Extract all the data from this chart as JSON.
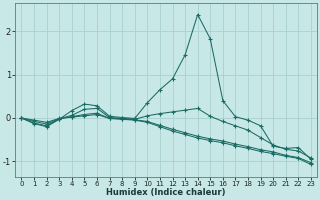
{
  "xlabel": "Humidex (Indice chaleur)",
  "bg_color": "#c8e8e8",
  "grid_color": "#a8d0d0",
  "line_color": "#1a6b62",
  "xlim": [
    -0.5,
    23.5
  ],
  "ylim": [
    -1.35,
    2.65
  ],
  "xticks": [
    0,
    1,
    2,
    3,
    4,
    5,
    6,
    7,
    8,
    9,
    10,
    11,
    12,
    13,
    14,
    15,
    16,
    17,
    18,
    19,
    20,
    21,
    22,
    23
  ],
  "yticks": [
    -1,
    0,
    1,
    2
  ],
  "series": [
    [
      0.0,
      -0.13,
      -0.2,
      -0.03,
      0.17,
      0.32,
      0.28,
      0.04,
      0.01,
      -0.01,
      0.35,
      0.65,
      0.9,
      1.45,
      2.38,
      1.82,
      0.4,
      0.03,
      -0.05,
      -0.18,
      -0.65,
      -0.7,
      -0.68,
      -0.95
    ],
    [
      0.0,
      -0.12,
      -0.18,
      -0.02,
      0.06,
      0.2,
      0.22,
      0.01,
      -0.01,
      -0.03,
      0.05,
      0.1,
      0.14,
      0.18,
      0.22,
      0.04,
      -0.08,
      -0.18,
      -0.28,
      -0.45,
      -0.62,
      -0.72,
      -0.76,
      -0.92
    ],
    [
      0.0,
      -0.08,
      -0.14,
      -0.02,
      0.03,
      0.08,
      0.11,
      -0.01,
      -0.03,
      -0.05,
      -0.1,
      -0.2,
      -0.3,
      -0.38,
      -0.46,
      -0.52,
      -0.57,
      -0.64,
      -0.7,
      -0.77,
      -0.82,
      -0.88,
      -0.93,
      -1.07
    ],
    [
      0.0,
      -0.05,
      -0.1,
      -0.01,
      0.02,
      0.05,
      0.08,
      -0.01,
      -0.02,
      -0.04,
      -0.08,
      -0.17,
      -0.26,
      -0.34,
      -0.42,
      -0.48,
      -0.53,
      -0.6,
      -0.66,
      -0.73,
      -0.78,
      -0.86,
      -0.91,
      -1.03
    ]
  ]
}
